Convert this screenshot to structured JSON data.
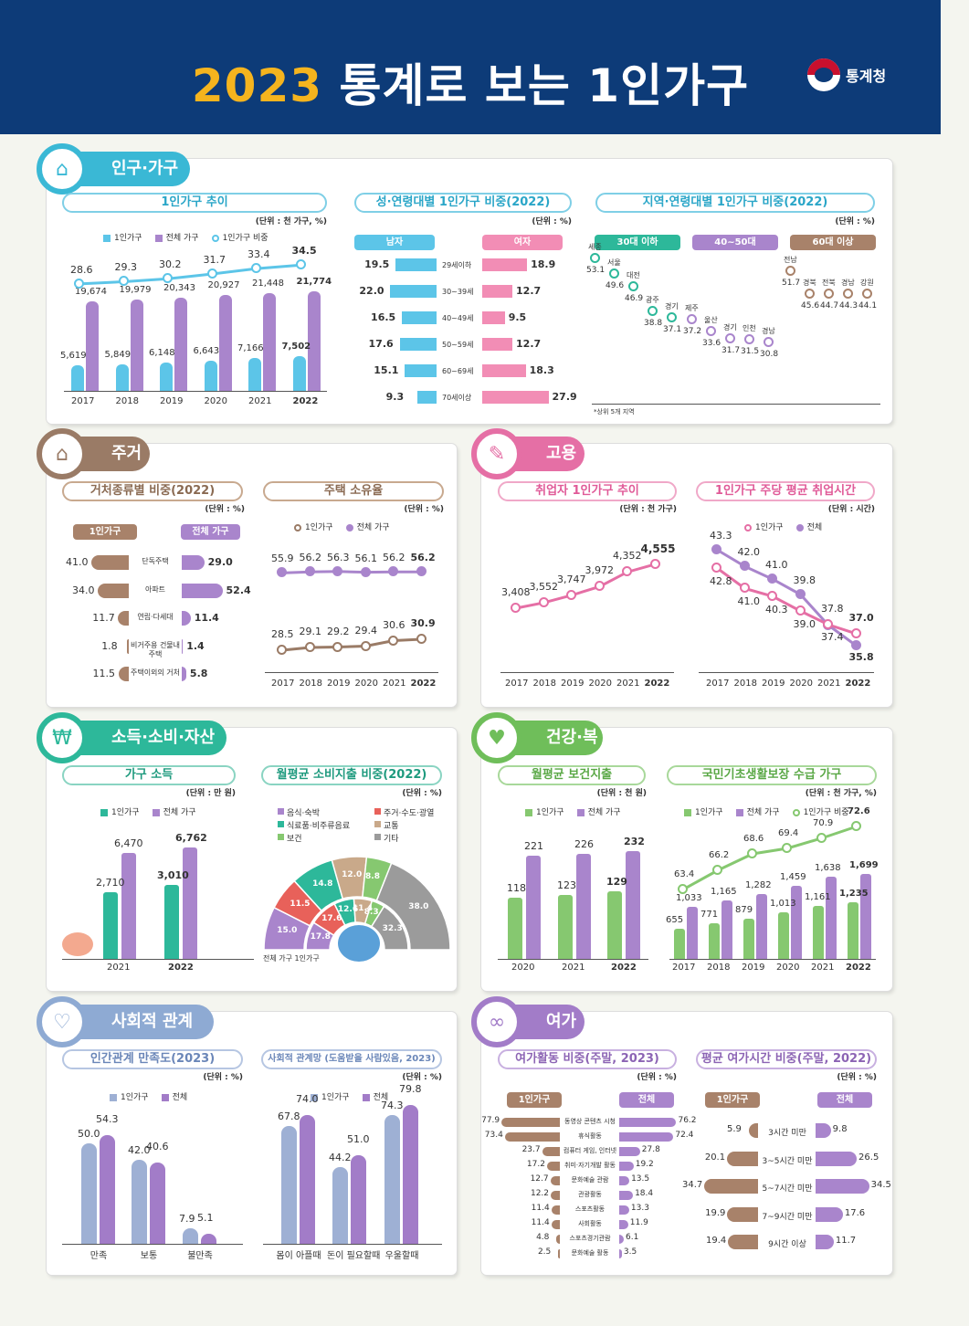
{
  "header": {
    "year": "2023",
    "title": "통계로 보는 1인가구",
    "logo": "통계청"
  },
  "sections": {
    "population": {
      "tab": "인구·가구",
      "icon": "house-person-icon",
      "trend": {
        "title": "1인가구 추이",
        "unit": "(단위 : 천 가구, %)",
        "legend": [
          "1인가구",
          "전체 가구",
          "1인가구 비중"
        ],
        "years": [
          "2017",
          "2018",
          "2019",
          "2020",
          "2021",
          "2022"
        ],
        "single": [
          "5,619",
          "5,849",
          "6,148",
          "6,643",
          "7,166",
          "7,502"
        ],
        "total": [
          "19,674",
          "19,979",
          "20,343",
          "20,927",
          "21,448",
          "21,774"
        ],
        "ratio": [
          "28.6",
          "29.3",
          "30.2",
          "31.7",
          "33.4",
          "34.5"
        ]
      },
      "gender": {
        "title": "성·연령대별 1인가구 비중(2022)",
        "unit": "(단위 : %)",
        "male": "남자",
        "female": "여자",
        "ages": [
          "29세이하",
          "30~39세",
          "40~49세",
          "50~59세",
          "60~69세",
          "70세이상"
        ],
        "male_vals": [
          "19.5",
          "22.0",
          "16.5",
          "17.6",
          "15.1",
          "9.3"
        ],
        "female_vals": [
          "18.9",
          "12.7",
          "9.5",
          "12.7",
          "18.3",
          "27.9"
        ]
      },
      "region": {
        "title": "지역·연령대별 1인가구 비중(2022)",
        "unit": "(단위 : %)",
        "groups": [
          "30대 이하",
          "40~50대",
          "60대 이상"
        ],
        "g1": [
          {
            "n": "세종",
            "v": "53.1"
          },
          {
            "n": "서울",
            "v": "49.6"
          },
          {
            "n": "대전",
            "v": "46.9"
          },
          {
            "n": "광주",
            "v": "38.8"
          },
          {
            "n": "경기",
            "v": "37.1"
          }
        ],
        "g2": [
          {
            "n": "제주",
            "v": "37.2"
          },
          {
            "n": "울산",
            "v": "33.6"
          },
          {
            "n": "경기",
            "v": "31.7"
          },
          {
            "n": "인천",
            "v": "31.5"
          },
          {
            "n": "경남",
            "v": "30.8"
          }
        ],
        "g3": [
          {
            "n": "전남",
            "v": "51.7"
          },
          {
            "n": "경북",
            "v": "45.6"
          },
          {
            "n": "전북",
            "v": "44.7"
          },
          {
            "n": "경남",
            "v": "44.3"
          },
          {
            "n": "강원",
            "v": "44.1"
          }
        ],
        "note": "*상위 5개 지역"
      }
    },
    "housing": {
      "tab": "주거",
      "icon": "house-icon",
      "type": {
        "title": "거처종류별 비중(2022)",
        "unit": "(단위 : %)",
        "left": "1인가구",
        "right": "전체 가구",
        "cats": [
          "단독주택",
          "아파트",
          "연립·다세대",
          "비거주용 건물내 주택",
          "주택이외의 거처"
        ],
        "single": [
          "41.0",
          "34.0",
          "11.7",
          "1.8",
          "11.5"
        ],
        "total": [
          "29.0",
          "52.4",
          "11.4",
          "1.4",
          "5.8"
        ]
      },
      "own": {
        "title": "주택 소유율",
        "unit": "(단위 : %)",
        "legend": [
          "1인가구",
          "전체 가구"
        ],
        "years": [
          "2017",
          "2018",
          "2019",
          "2020",
          "2021",
          "2022"
        ],
        "total": [
          "55.9",
          "56.2",
          "56.3",
          "56.1",
          "56.2",
          "56.2"
        ],
        "single": [
          "28.5",
          "29.1",
          "29.2",
          "29.4",
          "30.6",
          "30.9"
        ]
      }
    },
    "employment": {
      "tab": "고용",
      "icon": "worker-icon",
      "trend": {
        "title": "취업자 1인가구 추이",
        "unit": "(단위 : 천 가구)",
        "years": [
          "2017",
          "2018",
          "2019",
          "2020",
          "2021",
          "2022"
        ],
        "vals": [
          "3,408",
          "3,552",
          "3,747",
          "3,972",
          "4,352",
          "4,555"
        ]
      },
      "hours": {
        "title": "1인가구 주당 평균 취업시간",
        "unit": "(단위 : 시간)",
        "legend": [
          "1인가구",
          "전체"
        ],
        "years": [
          "2017",
          "2018",
          "2019",
          "2020",
          "2021",
          "2022"
        ],
        "single": [
          "42.8",
          "41.0",
          "40.3",
          "39.0",
          "37.8",
          "37.0"
        ],
        "total": [
          "43.3",
          "42.0",
          "41.0",
          "39.8",
          "37.4",
          "35.8"
        ]
      }
    },
    "income": {
      "tab": "소득·소비·자산",
      "icon": "coin-hand-icon",
      "household": {
        "title": "가구 소득",
        "unit": "(단위 : 만 원)",
        "legend": [
          "1인가구",
          "전체 가구"
        ],
        "years": [
          "2021",
          "2022"
        ],
        "single": [
          "2,710",
          "3,010"
        ],
        "total": [
          "6,470",
          "6,762"
        ]
      },
      "spend": {
        "title": "월평균 소비지출 비중(2022)",
        "unit": "(단위 : %)",
        "legend": [
          "음식·숙박",
          "주거·수도·광열",
          "식료품·비주류음료",
          "교통",
          "보건",
          "기타"
        ],
        "outer": [
          "15.0",
          "11.5",
          "14.8",
          "12.0",
          "8.8",
          "38.0"
        ],
        "inner": [
          "17.8",
          "17.6",
          "12.6",
          "11.4",
          "8.3",
          "32.3"
        ],
        "caption_outer": "전체 가구",
        "caption_inner": "1인가구"
      }
    },
    "health": {
      "tab": "건강·복지",
      "icon": "heartbeat-icon",
      "medical": {
        "title": "월평균 보건지출",
        "unit": "(단위 : 천 원)",
        "legend": [
          "1인가구",
          "전체 가구"
        ],
        "years": [
          "2020",
          "2021",
          "2022"
        ],
        "single": [
          "118",
          "123",
          "129"
        ],
        "total": [
          "221",
          "226",
          "232"
        ]
      },
      "welfare": {
        "title": "국민기초생활보장 수급 가구",
        "unit": "(단위 : 천 가구, %)",
        "legend": [
          "1인가구",
          "전체 가구",
          "1인가구 비중"
        ],
        "years": [
          "2017",
          "2018",
          "2019",
          "2020",
          "2021",
          "2022"
        ],
        "single": [
          "655",
          "771",
          "879",
          "1,013",
          "1,161",
          "1,235"
        ],
        "total": [
          "1,033",
          "1,165",
          "1,282",
          "1,459",
          "1,638",
          "1,699"
        ],
        "ratio": [
          "63.4",
          "66.2",
          "68.6",
          "69.4",
          "70.9",
          "72.6"
        ]
      }
    },
    "social": {
      "tab": "사회적 관계",
      "icon": "heart-hands-icon",
      "satisfaction": {
        "title": "인간관계 만족도(2023)",
        "unit": "(단위 : %)",
        "legend": [
          "1인가구",
          "전체"
        ],
        "cats": [
          "만족",
          "보통",
          "불만족"
        ],
        "single": [
          "50.0",
          "42.0",
          "7.9"
        ],
        "total": [
          "54.3",
          "40.6",
          "5.1"
        ]
      },
      "network": {
        "title": "사회적 관계망 (도움받을 사람있음, 2023)",
        "unit": "(단위 : %)",
        "legend": [
          "1인가구",
          "전체"
        ],
        "cats": [
          "몸이 아플때",
          "돈이 필요할때",
          "우울할때"
        ],
        "single": [
          "67.8",
          "44.2",
          "74.3"
        ],
        "total": [
          "74.0",
          "51.0",
          "79.8"
        ]
      }
    },
    "leisure": {
      "tab": "여가",
      "icon": "bicycle-icon",
      "activity": {
        "title": "여가활동 비중(주말, 2023)",
        "unit": "(단위 : %)",
        "left": "1인가구",
        "right": "전체",
        "cats": [
          "동영상 콘텐츠 시청",
          "휴식활동",
          "컴퓨터 게임, 인터넷",
          "취미·자기개발 활동",
          "문화예술 관람",
          "관광활동",
          "스포츠활동",
          "사회활동",
          "스포츠경기관람",
          "문화예술 활동"
        ],
        "single": [
          "77.9",
          "73.4",
          "23.7",
          "17.2",
          "12.7",
          "12.2",
          "11.4",
          "11.4",
          "4.8",
          "2.5"
        ],
        "total": [
          "76.2",
          "72.4",
          "27.8",
          "19.2",
          "13.5",
          "18.4",
          "13.3",
          "11.9",
          "6.1",
          "3.5"
        ]
      },
      "time": {
        "title": "평균 여가시간 비중(주말, 2022)",
        "unit": "(단위 : %)",
        "left": "1인가구",
        "right": "전체",
        "cats": [
          "3시간 미만",
          "3~5시간 미만",
          "5~7시간 미만",
          "7~9시간 미만",
          "9시간 이상"
        ],
        "single": [
          "5.9",
          "20.1",
          "34.7",
          "19.9",
          "19.4"
        ],
        "total": [
          "9.8",
          "26.5",
          "34.5",
          "17.6",
          "11.7"
        ]
      }
    }
  },
  "colors": {
    "blue": "#5cc5e8",
    "purple": "#a985cc",
    "teal": "#2db89a",
    "green": "#86c870",
    "brown": "#a8826a",
    "pink": "#e56fa5",
    "lavender": "#9eb0d4",
    "violet": "#a27cc8"
  }
}
